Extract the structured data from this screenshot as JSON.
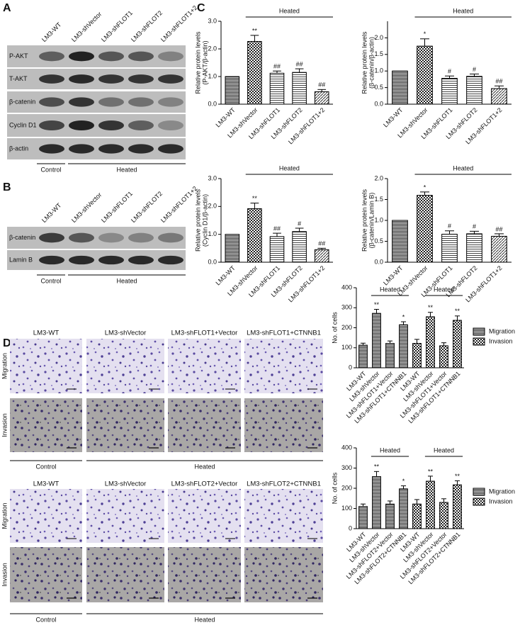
{
  "panel_labels": [
    "A",
    "B",
    "C",
    "D"
  ],
  "blot_a": {
    "lanes": [
      "LM3-WT",
      "LM3-shVector",
      "LM3-shFLOT1",
      "LM3-shFLOT2",
      "LM3-shFLOT1+2"
    ],
    "rows": [
      "P-AKT",
      "T-AKT",
      "β-catenin",
      "Cyclin D1",
      "β-actin"
    ],
    "groups": [
      "Control",
      "Heated"
    ]
  },
  "blot_b": {
    "lanes": [
      "LM3-WT",
      "LM3-shVector",
      "LM3-shFLOT1",
      "LM3-shFLOT2",
      "LM3-shFLOT1+2"
    ],
    "rows": [
      "β-catenin",
      "Lamin B"
    ],
    "groups": [
      "Control",
      "Heated"
    ]
  },
  "images": [
    {
      "columns": [
        "LM3-WT",
        "LM3-shVector",
        "LM3-shFLOT1+Vector",
        "LM3-shFLOT1+CTNNB1"
      ],
      "rows": [
        "Migration",
        "Invasion"
      ],
      "groups": [
        "Control",
        "Heated"
      ]
    },
    {
      "columns": [
        "LM3-WT",
        "LM3-shVector",
        "LM3-shFLOT2+Vector",
        "LM3-shFLOT2+CTNNB1"
      ],
      "rows": [
        "Migration",
        "Invasion"
      ],
      "groups": [
        "Control",
        "Heated"
      ]
    }
  ],
  "chart_data": [
    {
      "type": "bar",
      "ylabel": [
        "Relative protein levels",
        "(P-AKT/β-actin)"
      ],
      "bracket": "Heated",
      "categories": [
        "LM3-WT",
        "LM3-shVector",
        "LM3-shFLOT1",
        "LM3-shFLOT2",
        "LM3-shFLOT1+2"
      ],
      "values": [
        1.0,
        2.27,
        1.12,
        1.15,
        0.45
      ],
      "errors": [
        null,
        0.22,
        0.08,
        0.13,
        0.08
      ],
      "annotations": [
        null,
        "**",
        "##",
        "##",
        "##"
      ],
      "patterns": [
        "hlines",
        "checker",
        "light",
        "light",
        "dlines"
      ],
      "color": "#000000",
      "ylim": [
        0,
        3
      ],
      "yticks": [
        {
          "value": 0,
          "label": "0.0"
        },
        {
          "value": 1,
          "label": "1.0"
        },
        {
          "value": 2,
          "label": "2.0"
        },
        {
          "value": 3,
          "label": "3.0"
        }
      ]
    },
    {
      "type": "bar",
      "ylabel": [
        "Relative protein levels",
        "(β-catenin/β-actin)"
      ],
      "bracket": "Heated",
      "categories": [
        "LM3-WT",
        "LM3-shVector",
        "LM3-shFLOT1",
        "LM3-shFLOT2",
        "LM3-shFLOT1+2"
      ],
      "values": [
        1.0,
        1.75,
        0.78,
        0.84,
        0.47
      ],
      "errors": [
        null,
        0.22,
        0.07,
        0.07,
        0.08
      ],
      "annotations": [
        null,
        "*",
        "#",
        "#",
        "##"
      ],
      "patterns": [
        "hlines",
        "checker",
        "light",
        "light",
        "dlines"
      ],
      "color": "#000000",
      "ylim": [
        0,
        2.5
      ],
      "yticks": [
        {
          "value": 0,
          "label": "0.0"
        },
        0.5,
        {
          "value": 1,
          "label": "1.0"
        },
        1.5,
        {
          "value": 2,
          "label": "2.0"
        }
      ]
    },
    {
      "type": "bar",
      "ylabel": [
        "Relative protein levels",
        "(Cyclin D1/β-actin)"
      ],
      "bracket": "Heated",
      "categories": [
        "LM3-WT",
        "LM3-shVector",
        "LM3-shFLOT1",
        "LM3-shFLOT2",
        "LM3-shFLOT1+2"
      ],
      "values": [
        1.0,
        1.92,
        0.92,
        1.1,
        0.45
      ],
      "errors": [
        null,
        0.2,
        0.12,
        0.12,
        0.05
      ],
      "annotations": [
        null,
        "**",
        "##",
        "#",
        "##"
      ],
      "patterns": [
        "hlines",
        "checker",
        "light",
        "light",
        "dlines"
      ],
      "color": "#000000",
      "ylim": [
        0,
        3
      ],
      "yticks": [
        {
          "value": 0,
          "label": "0.0"
        },
        {
          "value": 1,
          "label": "1.0"
        },
        {
          "value": 2,
          "label": "2.0"
        },
        {
          "value": 3,
          "label": "3.0"
        }
      ]
    },
    {
      "type": "bar",
      "ylabel": [
        "Relative protein levels",
        "(β-catenin/Lamin B)"
      ],
      "bracket": "Heated",
      "categories": [
        "LM3-WT",
        "LM3-shVector",
        "LM3-shFLOT1",
        "LM3-shFLOT2",
        "LM3-shFLOT1+2"
      ],
      "values": [
        1.0,
        1.6,
        0.67,
        0.68,
        0.62
      ],
      "errors": [
        null,
        0.08,
        0.08,
        0.06,
        0.06
      ],
      "annotations": [
        null,
        "*",
        "#",
        "#",
        "##"
      ],
      "patterns": [
        "hlines",
        "checker",
        "light",
        "light",
        "dlines"
      ],
      "color": "#000000",
      "ylim": [
        0,
        2
      ],
      "yticks": [
        {
          "value": 0,
          "label": "0.0"
        },
        0.5,
        {
          "value": 1,
          "label": "1.0"
        },
        1.5,
        {
          "value": 2,
          "label": "2.0"
        }
      ]
    },
    {
      "type": "grouped_bar",
      "ylabel": [
        "No. of cells"
      ],
      "bracket": "Heated",
      "categories": [
        "LM3-WT",
        "LM3-shVector",
        "LM3-shFLOT1+Vector",
        "LM3-shFLOT1+CTNNB1"
      ],
      "series": [
        {
          "name": "Migration",
          "pattern": "hlines",
          "values": [
            113,
            272,
            122,
            215
          ],
          "errors": [
            10,
            20,
            12,
            15
          ],
          "annotations": [
            null,
            "**",
            null,
            "*"
          ]
        },
        {
          "name": "Invasion",
          "pattern": "checker",
          "values": [
            122,
            255,
            110,
            237
          ],
          "errors": [
            20,
            22,
            15,
            22
          ],
          "annotations": [
            null,
            "**",
            null,
            "**"
          ]
        }
      ],
      "color": "#000000",
      "legend": "right",
      "ylim": [
        0,
        400
      ],
      "yticks": [
        0,
        100,
        200,
        300,
        400
      ]
    },
    {
      "type": "grouped_bar",
      "ylabel": [
        "No. of cells"
      ],
      "bracket": "Heated",
      "categories": [
        "LM3-WT",
        "LM3-shVector",
        "LM3-shFLOT2+Vector",
        "LM3-shFLOT2+CTNNB1"
      ],
      "series": [
        {
          "name": "Migration",
          "pattern": "hlines",
          "values": [
            110,
            258,
            122,
            197
          ],
          "errors": [
            12,
            25,
            15,
            15
          ],
          "annotations": [
            null,
            "**",
            null,
            "*"
          ]
        },
        {
          "name": "Invasion",
          "pattern": "checker",
          "values": [
            122,
            235,
            130,
            217
          ],
          "errors": [
            22,
            25,
            18,
            20
          ],
          "annotations": [
            null,
            "**",
            null,
            "**"
          ]
        }
      ],
      "color": "#000000",
      "legend": "right",
      "ylim": [
        0,
        400
      ],
      "yticks": [
        0,
        100,
        200,
        300,
        400
      ]
    }
  ]
}
